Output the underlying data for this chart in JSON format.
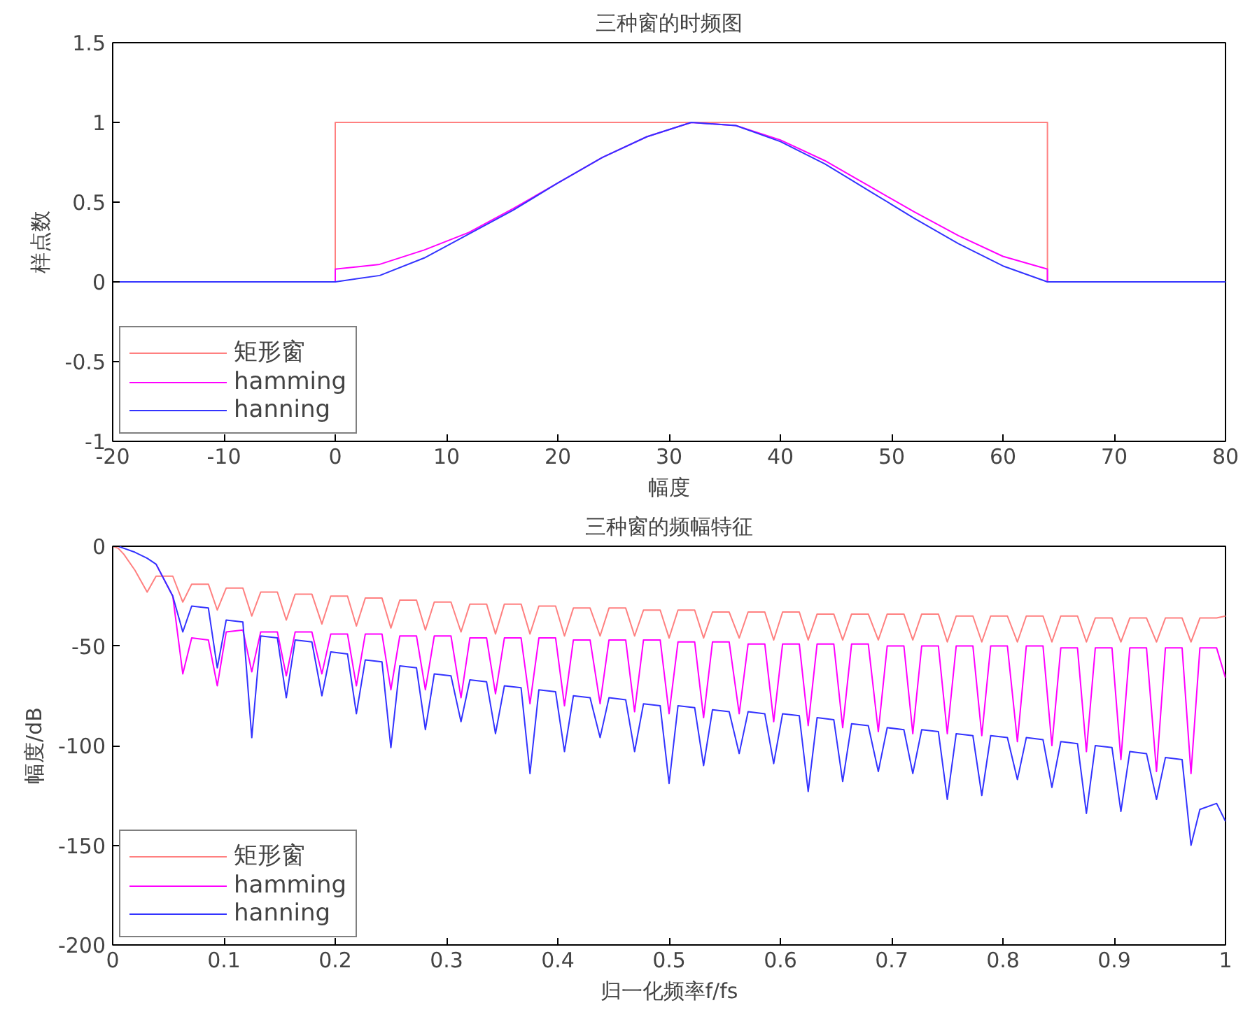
{
  "chart_data": [
    {
      "type": "line",
      "title": "三种窗的时频图",
      "xlabel": "幅度",
      "ylabel": "样点数",
      "xlim": [
        -20,
        80
      ],
      "xticks": [
        -20,
        -10,
        0,
        10,
        20,
        30,
        40,
        50,
        60,
        70,
        80
      ],
      "ylim": [
        -1,
        1.5
      ],
      "yticks": [
        -1,
        -0.5,
        0,
        0.5,
        1,
        1.5
      ],
      "legend": "bottom left",
      "grid": false,
      "series": [
        {
          "name": "矩形窗",
          "color": "#ff8080",
          "x": [
            -20,
            0,
            0,
            64,
            64,
            80
          ],
          "values": [
            0,
            0,
            1,
            1,
            0,
            0
          ]
        },
        {
          "name": "hamming",
          "color": "#ff00ff",
          "x": [
            -20,
            0,
            0,
            4,
            8,
            12,
            16,
            20,
            24,
            28,
            32,
            36,
            40,
            44,
            48,
            52,
            56,
            60,
            64,
            64,
            80
          ],
          "values": [
            0,
            0,
            0.08,
            0.11,
            0.2,
            0.31,
            0.46,
            0.62,
            0.78,
            0.91,
            1.0,
            0.98,
            0.89,
            0.76,
            0.6,
            0.44,
            0.29,
            0.16,
            0.08,
            0,
            0
          ]
        },
        {
          "name": "hanning",
          "color": "#3333ff",
          "x": [
            -20,
            0,
            4,
            8,
            12,
            16,
            20,
            24,
            28,
            32,
            36,
            40,
            44,
            48,
            52,
            56,
            60,
            64,
            80
          ],
          "values": [
            0,
            0,
            0.04,
            0.15,
            0.3,
            0.45,
            0.62,
            0.78,
            0.91,
            1.0,
            0.98,
            0.88,
            0.74,
            0.57,
            0.4,
            0.24,
            0.1,
            0,
            0
          ]
        }
      ]
    },
    {
      "type": "line",
      "title": "三种窗的频幅特征",
      "xlabel": "归一化频率f/fs",
      "ylabel": "幅度/dB",
      "xlim": [
        0,
        1
      ],
      "xticks": [
        0,
        0.1,
        0.2,
        0.3,
        0.4,
        0.5,
        0.6,
        0.7,
        0.8,
        0.9,
        1
      ],
      "ylim": [
        -200,
        0
      ],
      "yticks": [
        -200,
        -150,
        -100,
        -50,
        0
      ],
      "legend": "bottom left",
      "grid": false,
      "x": [
        0,
        0.005,
        0.01,
        0.02,
        0.031,
        0.039,
        0.054,
        0.063,
        0.071,
        0.086,
        0.094,
        0.102,
        0.117,
        0.125,
        0.133,
        0.148,
        0.156,
        0.164,
        0.179,
        0.188,
        0.196,
        0.211,
        0.219,
        0.227,
        0.242,
        0.25,
        0.258,
        0.273,
        0.281,
        0.289,
        0.304,
        0.313,
        0.321,
        0.336,
        0.344,
        0.352,
        0.367,
        0.375,
        0.383,
        0.398,
        0.406,
        0.414,
        0.429,
        0.438,
        0.446,
        0.461,
        0.469,
        0.477,
        0.492,
        0.5,
        0.508,
        0.523,
        0.531,
        0.539,
        0.554,
        0.563,
        0.571,
        0.586,
        0.594,
        0.602,
        0.617,
        0.625,
        0.633,
        0.648,
        0.656,
        0.664,
        0.679,
        0.688,
        0.696,
        0.711,
        0.719,
        0.727,
        0.742,
        0.75,
        0.758,
        0.773,
        0.781,
        0.789,
        0.804,
        0.813,
        0.821,
        0.836,
        0.844,
        0.852,
        0.867,
        0.875,
        0.883,
        0.898,
        0.906,
        0.914,
        0.929,
        0.938,
        0.946,
        0.961,
        0.969,
        0.977,
        0.992,
        1
      ],
      "series": [
        {
          "name": "矩形窗",
          "color": "#ff8080",
          "values": [
            0,
            -1,
            -4,
            -12,
            -23,
            -15,
            -15,
            -28,
            -19,
            -19,
            -32,
            -21,
            -21,
            -35,
            -23,
            -23,
            -37,
            -24,
            -24,
            -39,
            -25,
            -25,
            -40,
            -26,
            -26,
            -41,
            -27,
            -27,
            -42,
            -28,
            -28,
            -43,
            -29,
            -29,
            -44,
            -29,
            -29,
            -44,
            -30,
            -30,
            -45,
            -31,
            -31,
            -45,
            -31,
            -31,
            -45,
            -32,
            -32,
            -46,
            -32,
            -32,
            -46,
            -33,
            -33,
            -46,
            -33,
            -33,
            -47,
            -33,
            -33,
            -47,
            -34,
            -34,
            -47,
            -34,
            -34,
            -47,
            -34,
            -34,
            -47,
            -34,
            -34,
            -48,
            -35,
            -35,
            -48,
            -35,
            -35,
            -48,
            -35,
            -35,
            -48,
            -35,
            -35,
            -48,
            -36,
            -36,
            -48,
            -36,
            -36,
            -48,
            -36,
            -36,
            -48,
            -36,
            -36,
            -35
          ]
        },
        {
          "name": "hamming",
          "color": "#ff00ff",
          "values": [
            null,
            null,
            null,
            null,
            null,
            -9,
            -25,
            -64,
            -46,
            -47,
            -70,
            -43,
            -42,
            -63,
            -43,
            -43,
            -65,
            -43,
            -43,
            -64,
            -44,
            -44,
            -70,
            -44,
            -44,
            -72,
            -45,
            -45,
            -72,
            -45,
            -45,
            -76,
            -46,
            -46,
            -74,
            -46,
            -46,
            -79,
            -46,
            -46,
            -80,
            -47,
            -47,
            -79,
            -47,
            -47,
            -83,
            -47,
            -47,
            -84,
            -48,
            -48,
            -86,
            -48,
            -48,
            -84,
            -49,
            -49,
            -88,
            -49,
            -49,
            -90,
            -49,
            -49,
            -91,
            -49,
            -49,
            -93,
            -50,
            -50,
            -94,
            -50,
            -50,
            -94,
            -50,
            -50,
            -95,
            -50,
            -50,
            -98,
            -50,
            -50,
            -100,
            -51,
            -51,
            -103,
            -51,
            -51,
            -107,
            -51,
            -51,
            -113,
            -51,
            -51,
            -114,
            -51,
            -51,
            -66
          ]
        },
        {
          "name": "hanning",
          "color": "#3333ff",
          "values": [
            null,
            0,
            -1,
            -3,
            -6,
            -9,
            -25,
            -43,
            -30,
            -31,
            -61,
            -37,
            -38,
            -96,
            -45,
            -46,
            -76,
            -47,
            -48,
            -75,
            -53,
            -54,
            -84,
            -57,
            -58,
            -101,
            -60,
            -61,
            -92,
            -64,
            -65,
            -88,
            -67,
            -68,
            -94,
            -70,
            -71,
            -114,
            -72,
            -73,
            -103,
            -75,
            -76,
            -96,
            -76,
            -77,
            -103,
            -79,
            -80,
            -119,
            -80,
            -81,
            -110,
            -82,
            -83,
            -104,
            -83,
            -84,
            -109,
            -84,
            -85,
            -123,
            -86,
            -87,
            -118,
            -89,
            -90,
            -113,
            -91,
            -92,
            -114,
            -92,
            -93,
            -127,
            -94,
            -95,
            -125,
            -95,
            -96,
            -117,
            -96,
            -97,
            -121,
            -98,
            -99,
            -134,
            -100,
            -101,
            -133,
            -103,
            -104,
            -127,
            -106,
            -107,
            -150,
            -132,
            -129,
            -138
          ]
        }
      ]
    }
  ]
}
